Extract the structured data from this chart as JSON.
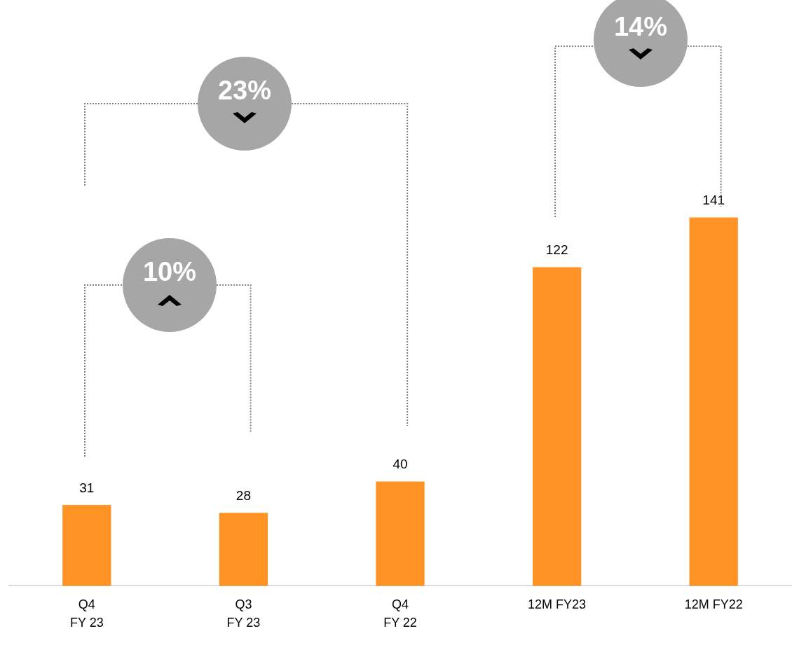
{
  "chart_data": {
    "type": "bar",
    "categories": [
      "Q4\nFY 23",
      "Q3\nFY 23",
      "Q4\nFY 22",
      "12M FY23",
      "12M FY22"
    ],
    "values": [
      31,
      28,
      40,
      122,
      141
    ],
    "color": "#ff9326",
    "data_labels": true,
    "grid": false,
    "legend": false,
    "tick_labels": "x",
    "annotations": [
      "10%",
      "23%",
      "14%"
    ]
  }
}
